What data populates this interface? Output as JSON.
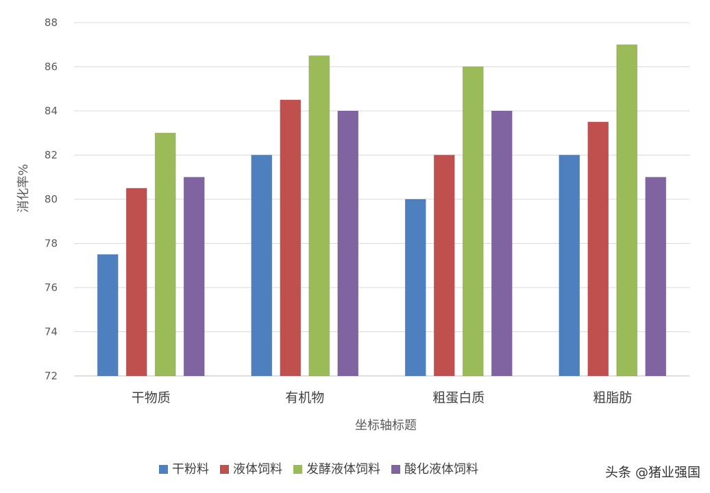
{
  "chart_data": {
    "type": "bar",
    "title": "",
    "xlabel": "坐标轴标题",
    "ylabel": "消化率%",
    "ylim": [
      72,
      88
    ],
    "ytick_step": 2,
    "grid": true,
    "legend_position": "bottom",
    "categories": [
      "干物质",
      "有机物",
      "粗蛋白质",
      "粗脂肪"
    ],
    "series": [
      {
        "name": "干粉料",
        "color": "#4e7fbe",
        "values": [
          77.5,
          82,
          80,
          82
        ]
      },
      {
        "name": "液体饲料",
        "color": "#c0504d",
        "values": [
          80.5,
          84.5,
          82,
          83.5
        ]
      },
      {
        "name": "发酵液体饲料",
        "color": "#9bbb59",
        "values": [
          83,
          86.5,
          86,
          87
        ]
      },
      {
        "name": "酸化液体饲料",
        "color": "#8064a2",
        "values": [
          81,
          84,
          84,
          81
        ]
      }
    ]
  },
  "watermark": {
    "text": "头条 @猪业强国"
  }
}
